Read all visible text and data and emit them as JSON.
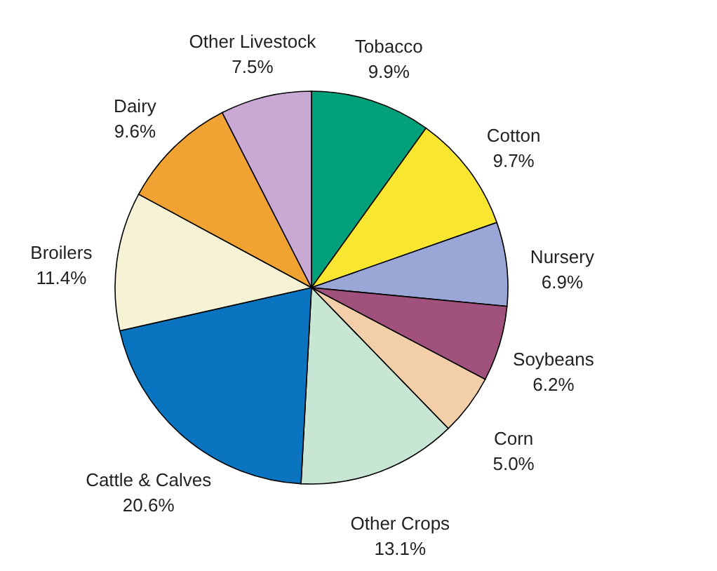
{
  "chart_data": {
    "type": "pie",
    "categories": [
      "Tobacco",
      "Cotton",
      "Nursery",
      "Soybeans",
      "Corn",
      "Other Crops",
      "Cattle & Calves",
      "Broilers",
      "Dairy",
      "Other Livestock"
    ],
    "values": [
      9.9,
      9.7,
      6.9,
      6.2,
      5.0,
      13.1,
      20.6,
      11.4,
      9.6,
      7.5
    ],
    "value_labels": [
      "9.9%",
      "9.7%",
      "6.9%",
      "6.2%",
      "5.0%",
      "13.1%",
      "20.6%",
      "11.4%",
      "9.6%",
      "7.5%"
    ],
    "colors": [
      "#00a07a",
      "#f8e630",
      "#9aa6d6",
      "#a0527c",
      "#f2cfa8",
      "#c8e6d4",
      "#0b74c0",
      "#f5f2d6",
      "#f0a232",
      "#c9a9d4"
    ]
  }
}
